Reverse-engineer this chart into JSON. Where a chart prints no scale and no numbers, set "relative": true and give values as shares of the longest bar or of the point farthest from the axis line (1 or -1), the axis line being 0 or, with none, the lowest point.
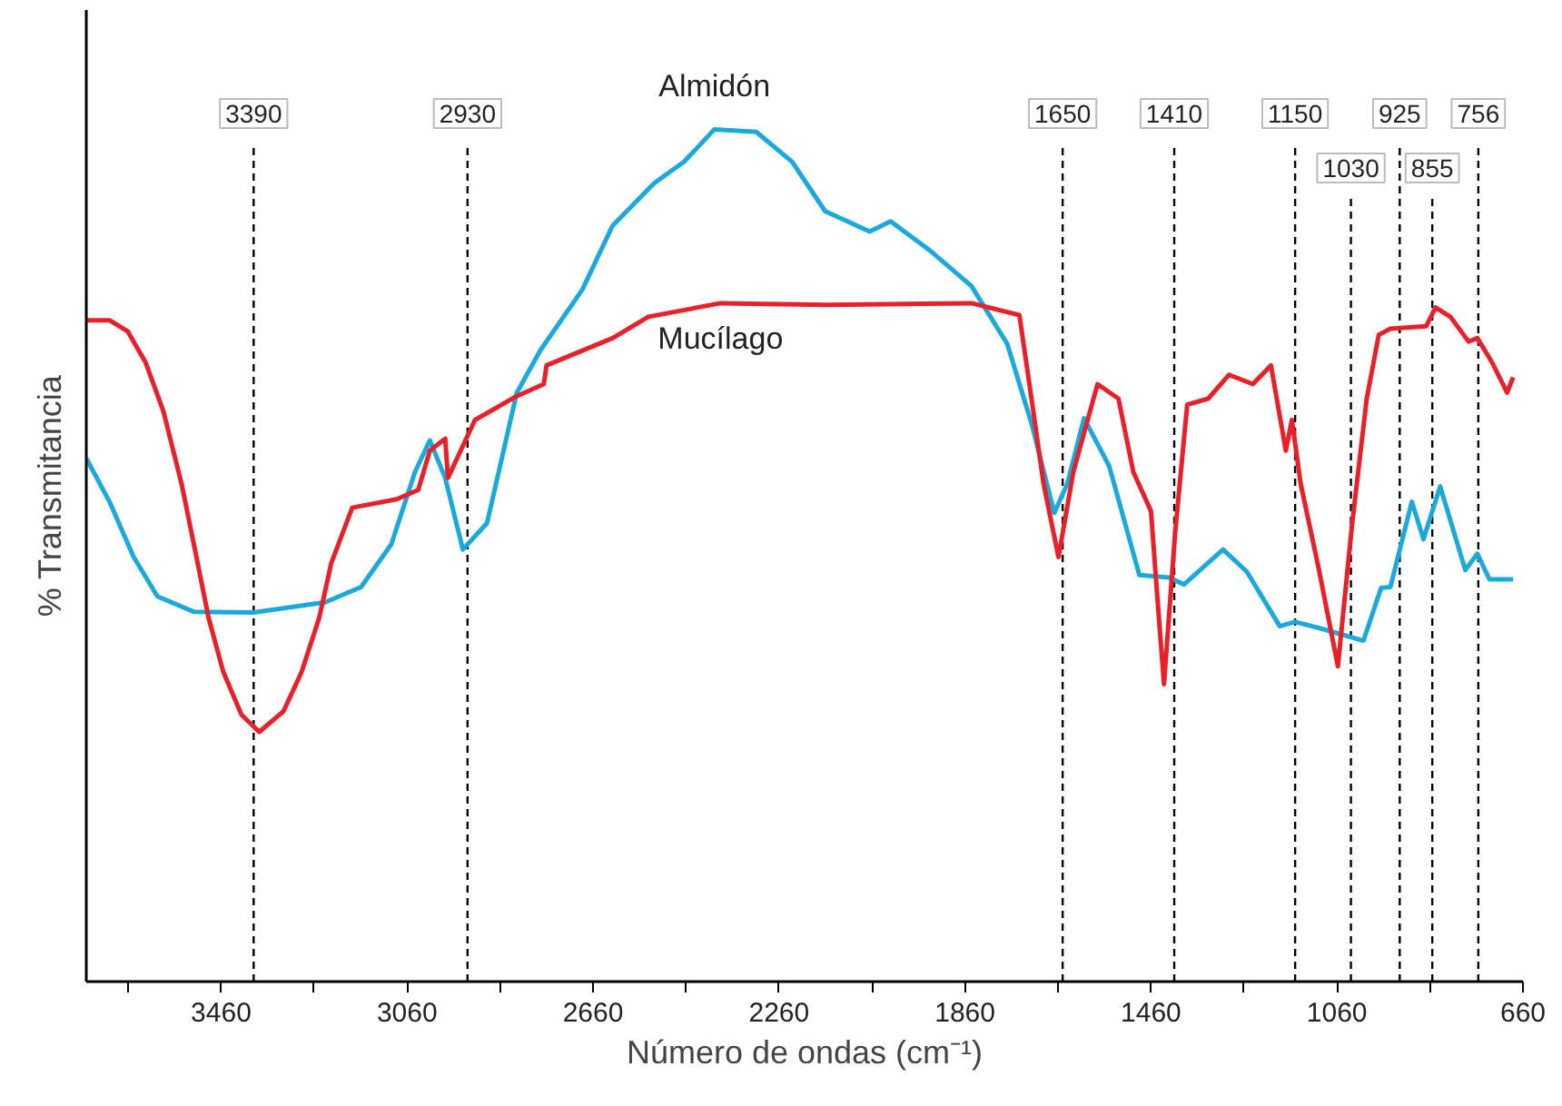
{
  "chart_data": {
    "type": "line",
    "relative": true,
    "xlabel": "Número de ondas (cm⁻¹)",
    "ylabel": "% Transmitancia",
    "grid": false,
    "line_style": "solid",
    "xlim": [
      3750,
      660
    ],
    "xticks": [
      {
        "value": 3660,
        "label": null
      },
      3460,
      {
        "value": 3260,
        "label": null
      },
      3060,
      {
        "value": 2860,
        "label": null
      },
      2660,
      {
        "value": 2460,
        "label": null
      },
      2260,
      {
        "value": 2060,
        "label": null
      },
      1860,
      {
        "value": 1660,
        "label": null
      },
      1460,
      {
        "value": 1260,
        "label": null
      },
      1060,
      {
        "value": 860,
        "label": null
      },
      660
    ],
    "series": [
      {
        "name": "Almidón",
        "color": "#1ba9dc",
        "x": [
          3750,
          3700,
          3648,
          3597,
          3519,
          3390,
          3236,
          3159,
          3094,
          3043,
          3011,
          2978,
          2940,
          2888,
          2824,
          2773,
          2683,
          2618,
          2528,
          2464,
          2399,
          2309,
          2232,
          2161,
          2065,
          2020,
          1936,
          1846,
          1769,
          1717,
          1668,
          1640,
          1604,
          1550,
          1485,
          1421,
          1389,
          1305,
          1254,
          1183,
          1150,
          1099,
          1003,
          965,
          945,
          899,
          874,
          838,
          784,
          758,
          732,
          681
        ],
        "values": [
          0.614,
          0.563,
          0.498,
          0.452,
          0.434,
          0.433,
          0.445,
          0.463,
          0.513,
          0.598,
          0.635,
          0.591,
          0.507,
          0.538,
          0.691,
          0.741,
          0.812,
          0.887,
          0.937,
          0.962,
          1.0,
          0.997,
          0.962,
          0.904,
          0.88,
          0.892,
          0.858,
          0.816,
          0.748,
          0.655,
          0.55,
          0.584,
          0.661,
          0.605,
          0.477,
          0.474,
          0.466,
          0.507,
          0.481,
          0.417,
          0.422,
          0.415,
          0.4,
          0.462,
          0.463,
          0.563,
          0.519,
          0.581,
          0.483,
          0.502,
          0.472,
          0.472
        ]
      },
      {
        "name": "Mucílago",
        "color": "#e8202a",
        "x": [
          3750,
          3700,
          3661,
          3622,
          3584,
          3545,
          3513,
          3487,
          3455,
          3416,
          3378,
          3326,
          3287,
          3249,
          3223,
          3178,
          3082,
          3036,
          3011,
          2978,
          2972,
          2914,
          2824,
          2766,
          2760,
          2618,
          2541,
          2386,
          2155,
          1846,
          1743,
          1717,
          1691,
          1659,
          1627,
          1575,
          1530,
          1498,
          1460,
          1447,
          1432,
          1408,
          1382,
          1337,
          1292,
          1241,
          1202,
          1170,
          1157,
          1138,
          1099,
          1058,
          1028,
          996,
          970,
          945,
          868,
          848,
          816,
          777,
          758,
          726,
          694,
          681
        ],
        "values": [
          0.776,
          0.776,
          0.763,
          0.726,
          0.669,
          0.584,
          0.498,
          0.427,
          0.363,
          0.313,
          0.293,
          0.317,
          0.363,
          0.427,
          0.491,
          0.556,
          0.566,
          0.577,
          0.623,
          0.637,
          0.591,
          0.659,
          0.687,
          0.701,
          0.723,
          0.755,
          0.78,
          0.796,
          0.794,
          0.796,
          0.782,
          0.684,
          0.584,
          0.498,
          0.598,
          0.701,
          0.684,
          0.598,
          0.552,
          0.456,
          0.349,
          0.527,
          0.677,
          0.684,
          0.712,
          0.701,
          0.723,
          0.623,
          0.659,
          0.584,
          0.484,
          0.37,
          0.534,
          0.684,
          0.759,
          0.766,
          0.769,
          0.791,
          0.78,
          0.751,
          0.755,
          0.726,
          0.691,
          0.709
        ]
      }
    ],
    "ref_lines": [
      {
        "axis": "x",
        "value": 3390,
        "label": "3390",
        "line_style": "dashed",
        "color": "#000000"
      },
      {
        "axis": "x",
        "value": 2930,
        "label": "2930",
        "line_style": "dashed",
        "color": "#000000"
      },
      {
        "axis": "x",
        "value": 1650,
        "label": "1650",
        "line_style": "dashed",
        "color": "#000000"
      },
      {
        "axis": "x",
        "value": 1410,
        "label": "1410",
        "line_style": "dashed",
        "color": "#000000"
      },
      {
        "axis": "x",
        "value": 1150,
        "label": "1150",
        "line_style": "dashed",
        "color": "#000000"
      },
      {
        "axis": "x",
        "value": 1030,
        "label": "1030",
        "line_style": "dashed",
        "color": "#000000"
      },
      {
        "axis": "x",
        "value": 925,
        "label": "925",
        "line_style": "dashed",
        "color": "#000000"
      },
      {
        "axis": "x",
        "value": 855,
        "label": "855",
        "line_style": "dashed",
        "color": "#000000"
      },
      {
        "axis": "x",
        "value": 756,
        "label": "756",
        "line_style": "dashed",
        "color": "#000000"
      }
    ]
  }
}
